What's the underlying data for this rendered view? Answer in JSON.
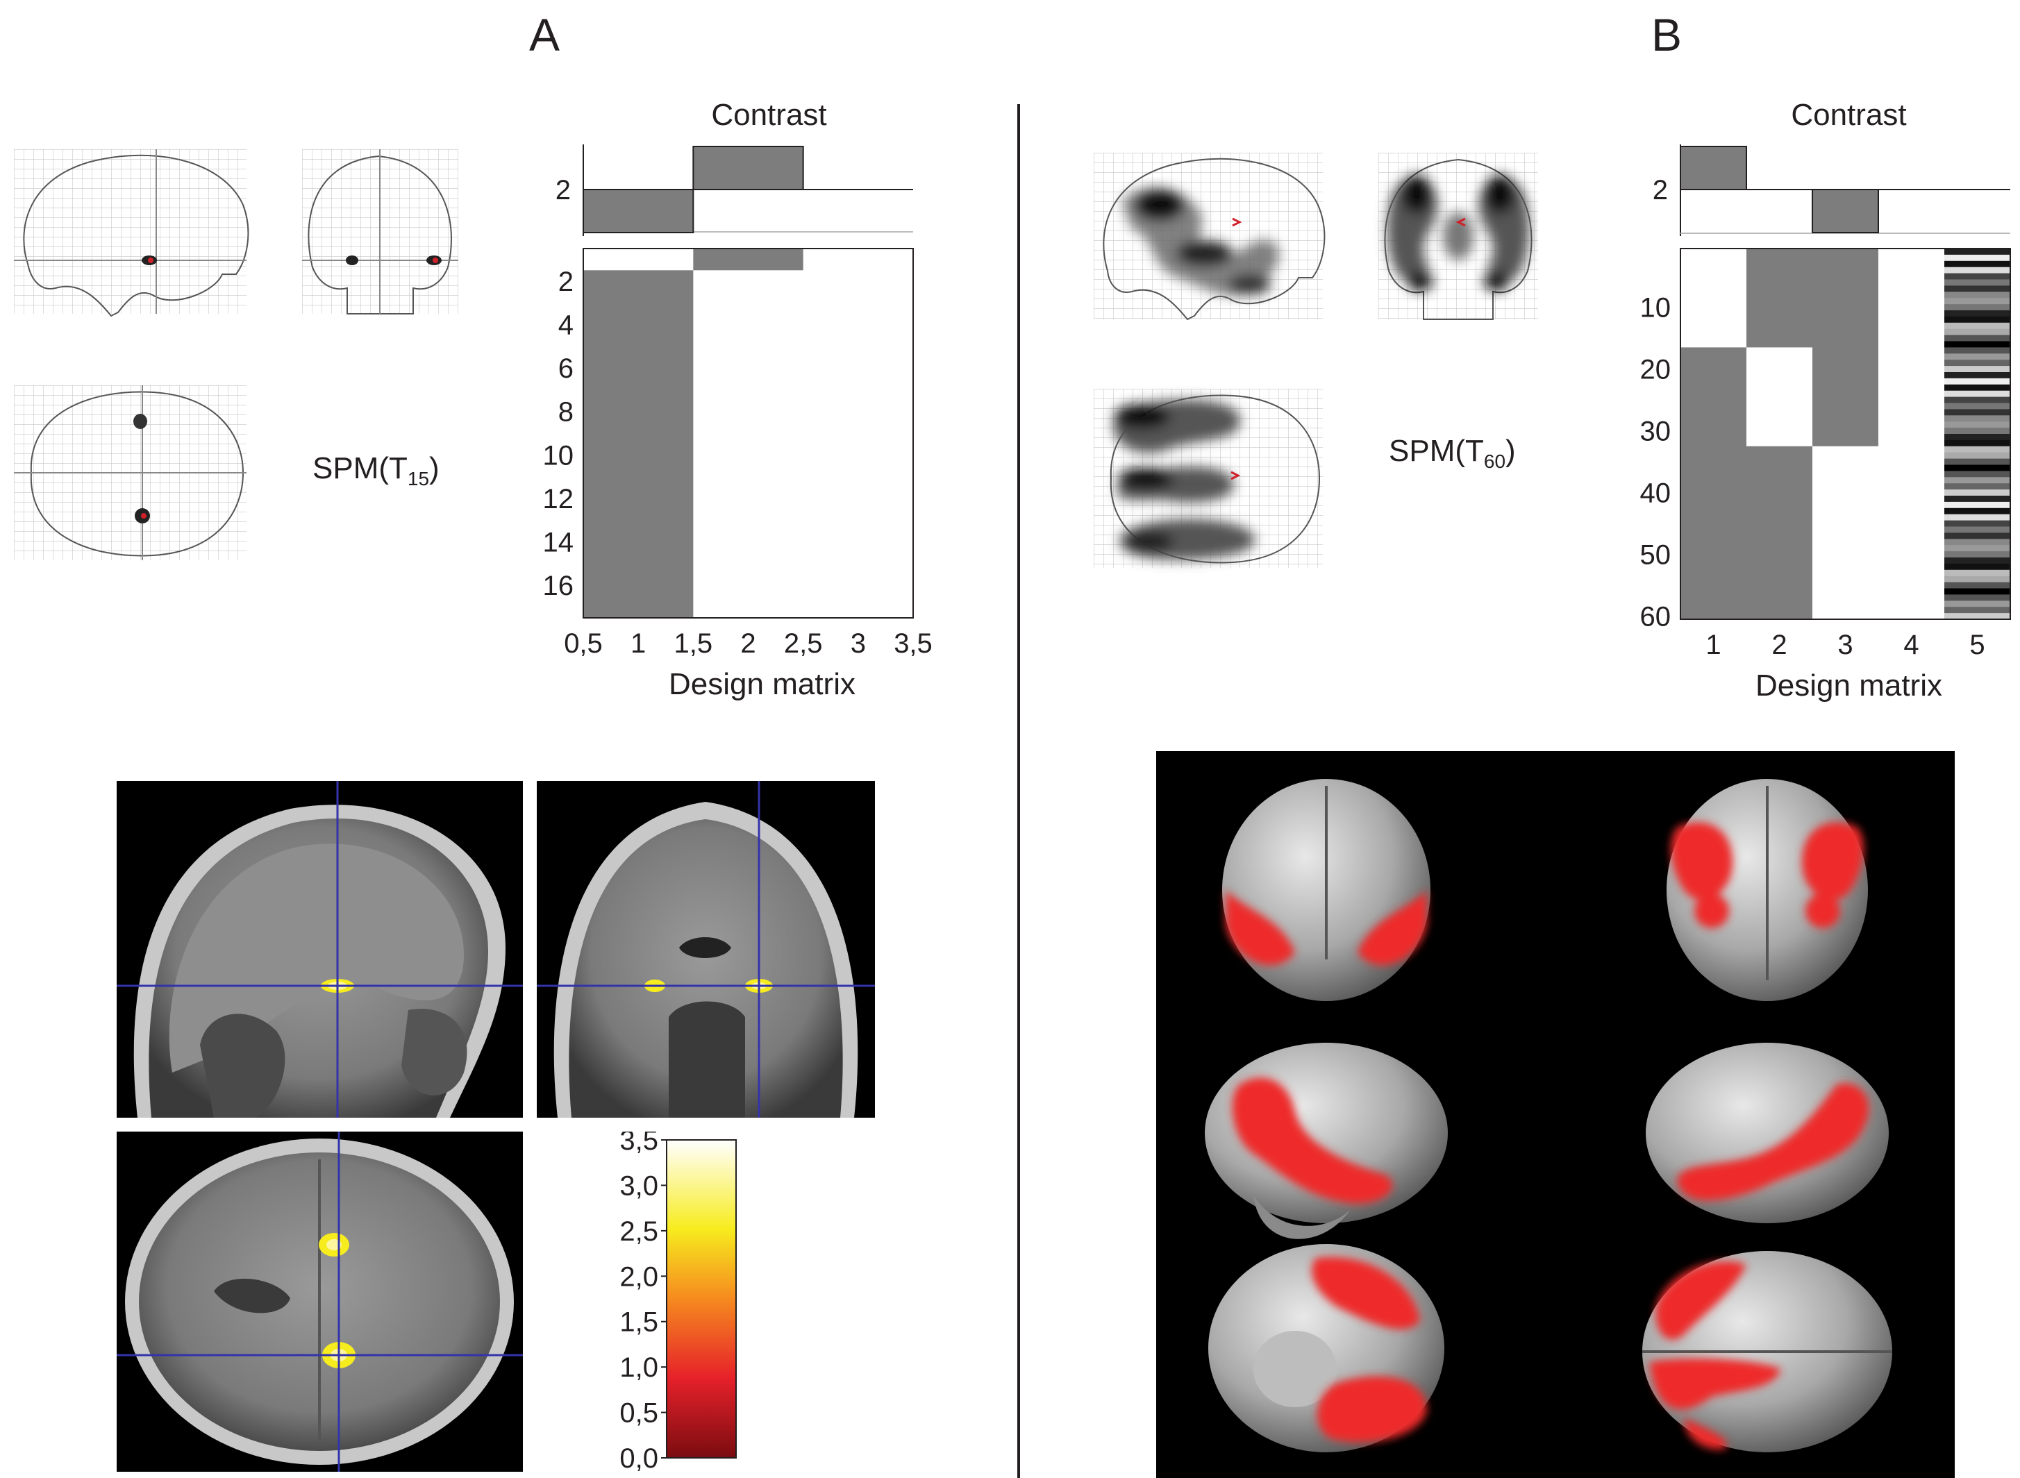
{
  "panels": {
    "a": {
      "letter": "A",
      "spm_label": "SPM(T",
      "spm_sub": "15",
      "spm_close": ")",
      "contrast": {
        "title": "Contrast",
        "ytick": "2",
        "bars": [
          {
            "column": 1,
            "value": -1
          },
          {
            "column": 2,
            "value": 1
          }
        ]
      },
      "design_matrix": {
        "xlabel": "Design matrix",
        "xticks": [
          "0,5",
          "1",
          "1,5",
          "2",
          "2,5",
          "3",
          "3,5"
        ],
        "yticks": [
          "2",
          "4",
          "6",
          "8",
          "10",
          "12",
          "14",
          "16"
        ],
        "xlim": [
          0.5,
          3.5
        ],
        "ylim": [
          0.5,
          17.5
        ],
        "blocks": [
          {
            "x0": 0.5,
            "x1": 1.5,
            "y0": 1.5,
            "y1": 17.5
          },
          {
            "x0": 1.5,
            "x1": 2.5,
            "y0": 0.5,
            "y1": 1.5
          }
        ]
      },
      "colorbar": {
        "ticks": [
          "3,5",
          "3,0",
          "2,5",
          "2,0",
          "1,5",
          "1,0",
          "0,5",
          "0,0"
        ],
        "range": [
          0.0,
          3.5
        ]
      }
    },
    "b": {
      "letter": "B",
      "spm_label": "SPM(T",
      "spm_sub": "60",
      "spm_close": ")",
      "contrast": {
        "title": "Contrast",
        "ytick": "2",
        "bars": [
          {
            "column": 1,
            "value": 1
          },
          {
            "column": 3,
            "value": -1
          }
        ]
      },
      "design_matrix": {
        "xlabel": "Design matrix",
        "xticks": [
          "1",
          "2",
          "3",
          "4",
          "5"
        ],
        "yticks": [
          "10",
          "20",
          "30",
          "40",
          "50",
          "60"
        ],
        "xlim": [
          0.5,
          5.5
        ],
        "ylim": [
          0.5,
          60.5
        ],
        "blocks": [
          {
            "x0": 0.5,
            "x1": 1.5,
            "y0": 16.5,
            "y1": 60.5
          },
          {
            "x0": 1.5,
            "x1": 2.5,
            "y0": 0.5,
            "y1": 16.5
          },
          {
            "x0": 1.5,
            "x1": 2.5,
            "y0": 32.5,
            "y1": 60.5
          },
          {
            "x0": 2.5,
            "x1": 3.5,
            "y0": 0.5,
            "y1": 32.5
          }
        ]
      }
    }
  },
  "colors": {
    "block_gray": "#7d7d7e",
    "overlay_red": "#ee2b2b",
    "overlay_yellow": "#f7ec1e",
    "crosshair_blue": "#3333aa"
  }
}
